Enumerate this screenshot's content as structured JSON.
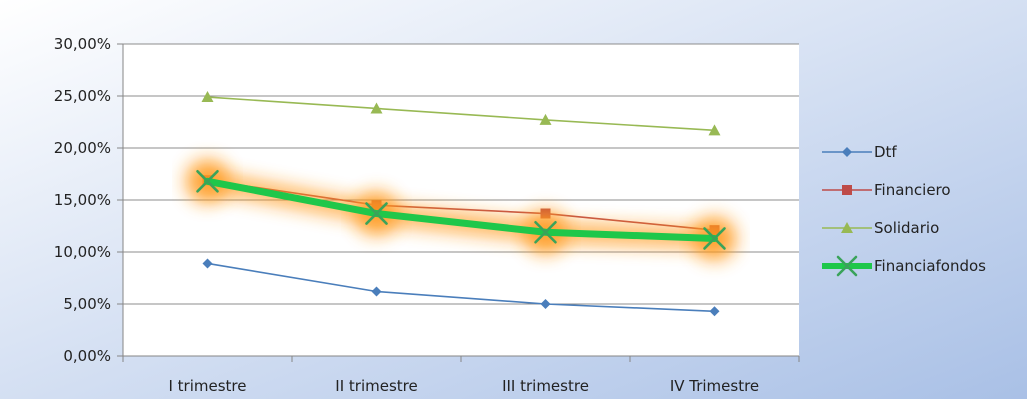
{
  "chart_data": {
    "type": "line",
    "categories": [
      "I trimestre",
      "II trimestre",
      "III trimestre",
      "IV Trimestre"
    ],
    "series": [
      {
        "name": "Dtf",
        "values": [
          8.9,
          6.2,
          5.0,
          4.3
        ],
        "color": "#4a7ebb",
        "marker": "diamond"
      },
      {
        "name": "Financiero",
        "values": [
          16.9,
          14.5,
          13.7,
          12.1
        ],
        "color": "#be4b48",
        "marker": "square"
      },
      {
        "name": "Solidario",
        "values": [
          24.9,
          23.8,
          22.7,
          21.7
        ],
        "color": "#98b954",
        "marker": "triangle"
      },
      {
        "name": "Financiafondos",
        "values": [
          16.8,
          13.7,
          11.9,
          11.3
        ],
        "color": "#1fc74a",
        "marker": "x",
        "glow": "#ff9a1a",
        "emphasis": "thick line with orange glow"
      }
    ],
    "y_tick_labels": [
      "0,00%",
      "5,00%",
      "10,00%",
      "15,00%",
      "20,00%",
      "25,00%",
      "30,00%"
    ],
    "ylim": [
      0,
      30
    ],
    "y_step": 5,
    "grid": "horizontal",
    "legend_position": "right",
    "colors": {
      "background_top": "#ffffff",
      "background_bottom": "#a9c0e6",
      "plot_area": "#ffffff",
      "gridline": "#8c8c8c",
      "axis": "#868686",
      "text": "#222222"
    }
  }
}
